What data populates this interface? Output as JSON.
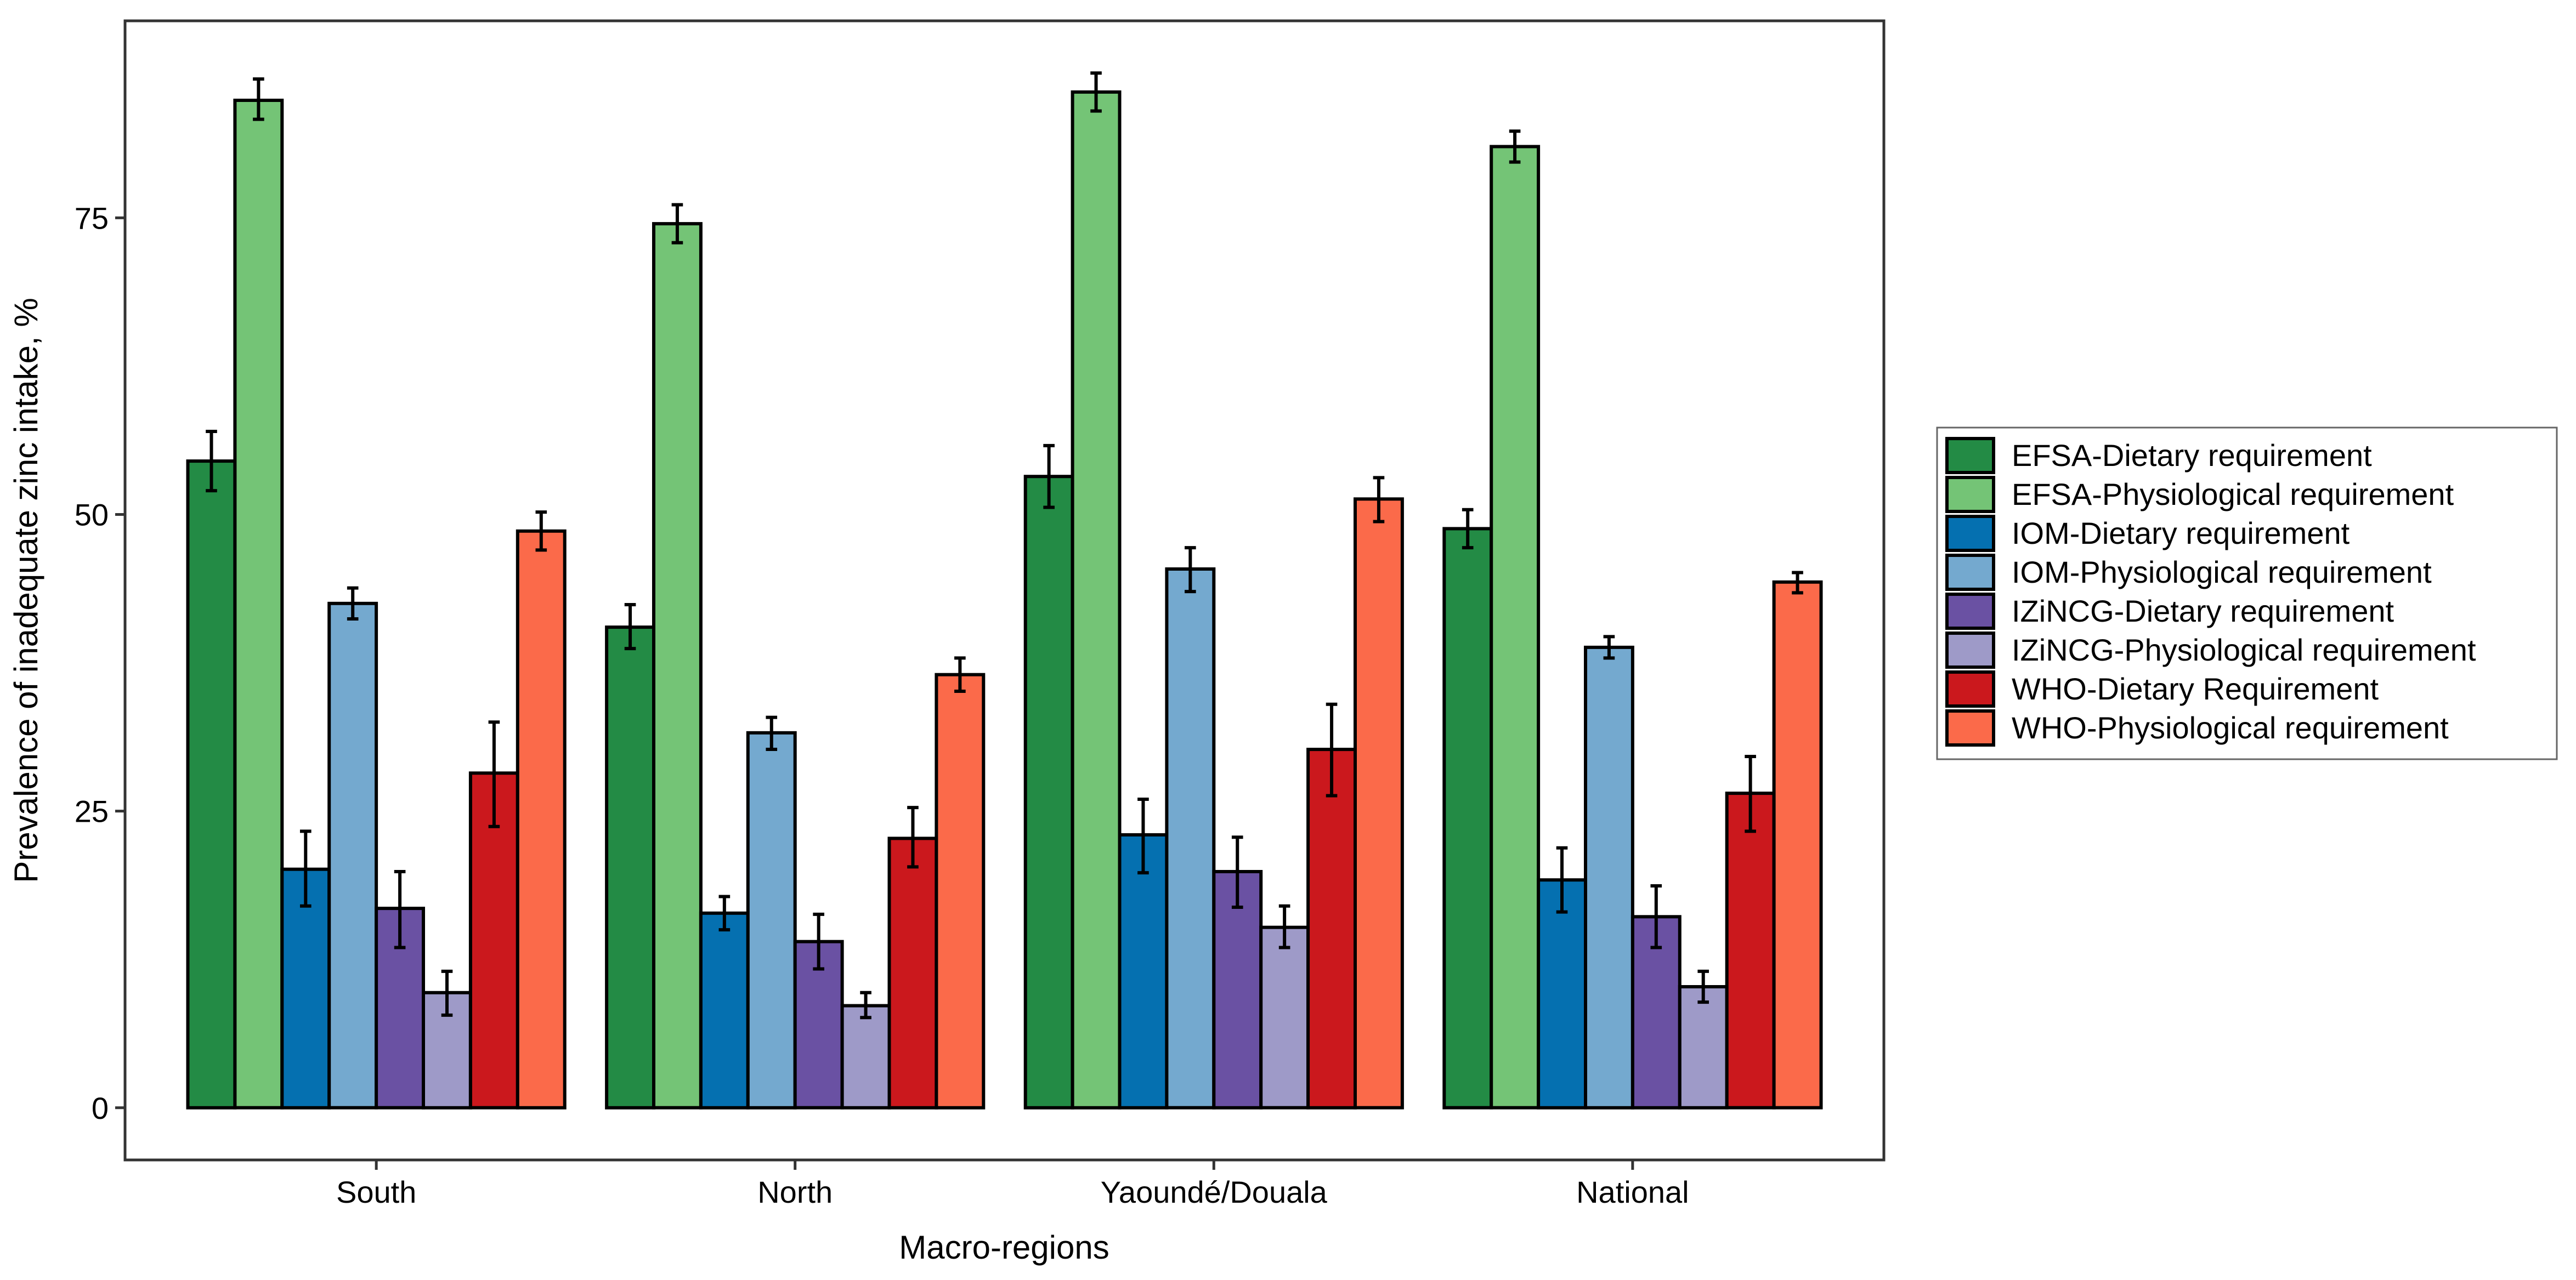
{
  "chart_data": {
    "type": "bar",
    "title": "",
    "xlabel": "Macro-regions",
    "ylabel": "Prevalence of inadequate zinc intake, %",
    "ylim": [
      -4.4,
      91.6
    ],
    "yticks": [
      0,
      25,
      50,
      75
    ],
    "categories": [
      "South",
      "North",
      "Yaoundé/Douala",
      "National"
    ],
    "legend_position": "right",
    "grid": false,
    "error_bars": true,
    "series": [
      {
        "name": "EFSA-Dietary requirement",
        "color": "#238B45",
        "values": [
          54.5,
          40.5,
          53.2,
          48.8
        ],
        "lower": [
          52.0,
          38.7,
          50.6,
          47.2
        ],
        "upper": [
          57.0,
          42.4,
          55.8,
          50.4
        ]
      },
      {
        "name": "EFSA-Physiological requirement",
        "color": "#74C476",
        "values": [
          84.9,
          74.5,
          85.6,
          81.0
        ],
        "lower": [
          83.3,
          72.9,
          84.0,
          79.7
        ],
        "upper": [
          86.7,
          76.1,
          87.2,
          82.3
        ]
      },
      {
        "name": "IOM-Dietary requirement",
        "color": "#0570B0",
        "values": [
          20.1,
          16.4,
          23.0,
          19.2
        ],
        "lower": [
          17.0,
          15.0,
          19.8,
          16.5
        ],
        "upper": [
          23.3,
          17.8,
          26.0,
          21.9
        ]
      },
      {
        "name": "IOM-Physiological requirement",
        "color": "#74A9CF",
        "values": [
          42.5,
          31.6,
          45.4,
          38.8
        ],
        "lower": [
          41.2,
          30.2,
          43.5,
          37.9
        ],
        "upper": [
          43.8,
          32.9,
          47.2,
          39.7
        ]
      },
      {
        "name": "IZiNCG-Dietary requirement",
        "color": "#6A51A3",
        "values": [
          16.8,
          14.0,
          19.9,
          16.1
        ],
        "lower": [
          13.5,
          11.7,
          16.9,
          13.5
        ],
        "upper": [
          19.9,
          16.3,
          22.8,
          18.7
        ]
      },
      {
        "name": "IZiNCG-Physiological requirement",
        "color": "#9E9AC8",
        "values": [
          9.7,
          8.6,
          15.2,
          10.2
        ],
        "lower": [
          7.8,
          7.6,
          13.5,
          8.9
        ],
        "upper": [
          11.5,
          9.7,
          17.0,
          11.5
        ]
      },
      {
        "name": "WHO-Dietary Requirement",
        "color": "#CB181D",
        "values": [
          28.2,
          22.7,
          30.2,
          26.5
        ],
        "lower": [
          23.7,
          20.3,
          26.3,
          23.3
        ],
        "upper": [
          32.5,
          25.3,
          34.0,
          29.6
        ]
      },
      {
        "name": "WHO-Physiological requirement",
        "color": "#FB6A4A",
        "values": [
          48.6,
          36.5,
          51.3,
          44.3
        ],
        "lower": [
          47.0,
          35.1,
          49.4,
          43.4
        ],
        "upper": [
          50.2,
          37.9,
          53.1,
          45.1
        ]
      }
    ]
  }
}
